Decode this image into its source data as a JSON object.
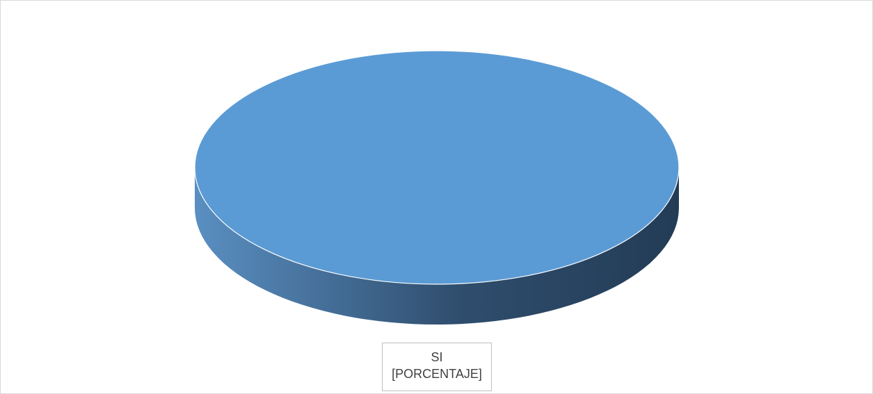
{
  "chart_data": {
    "type": "pie",
    "style": "3d",
    "slices": [
      {
        "label": "SI",
        "value": 100,
        "value_label": "[PORCENTAJE]"
      }
    ],
    "title": "",
    "legend": "none"
  },
  "colors": {
    "slice_top": "#5b9bd5",
    "slice_side_light": "#5a8fc2",
    "slice_side_dark": "#233c56",
    "frame_border": "#d9d9d9"
  }
}
